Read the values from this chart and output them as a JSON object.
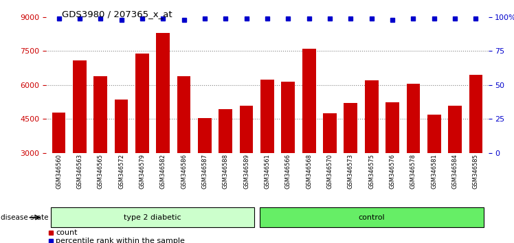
{
  "title": "GDS3980 / 207365_x_at",
  "samples": [
    "GSM346560",
    "GSM346563",
    "GSM346565",
    "GSM346572",
    "GSM346579",
    "GSM346582",
    "GSM346586",
    "GSM346587",
    "GSM346588",
    "GSM346589",
    "GSM346561",
    "GSM346566",
    "GSM346568",
    "GSM346570",
    "GSM346573",
    "GSM346575",
    "GSM346576",
    "GSM346578",
    "GSM346581",
    "GSM346584",
    "GSM346585"
  ],
  "counts": [
    4800,
    7100,
    6400,
    5350,
    7400,
    8300,
    6400,
    4550,
    4950,
    5100,
    6250,
    6150,
    7600,
    4750,
    5200,
    6200,
    5250,
    6050,
    4700,
    5100,
    6450
  ],
  "percentile": [
    99,
    99,
    99,
    98,
    99,
    99,
    98,
    99,
    99,
    99,
    99,
    99,
    99,
    99,
    99,
    99,
    98,
    99,
    99,
    99,
    99
  ],
  "group1_name": "type 2 diabetic",
  "group1_indices": [
    0,
    9
  ],
  "group2_name": "control",
  "group2_indices": [
    10,
    20
  ],
  "group1_color": "#ccffcc",
  "group2_color": "#66ee66",
  "bar_color": "#cc0000",
  "percentile_color": "#0000cc",
  "ylim_left": [
    3000,
    9000
  ],
  "ylim_right": [
    0,
    100
  ],
  "yticks_left": [
    3000,
    4500,
    6000,
    7500,
    9000
  ],
  "yticks_right": [
    0,
    25,
    50,
    75,
    100
  ],
  "grid_lines": [
    4500,
    6000,
    7500
  ],
  "background_color": "#ffffff",
  "tick_area_color": "#d8d8d8",
  "legend_count": "count",
  "legend_percentile": "percentile rank within the sample"
}
